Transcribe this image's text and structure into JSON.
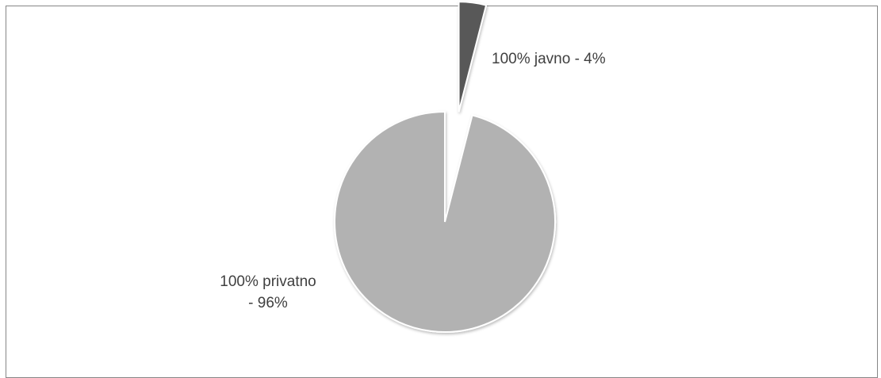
{
  "chart_data": {
    "type": "pie",
    "title": "",
    "series": [
      {
        "values": [
          4,
          96
        ],
        "categories": [
          "100% javno",
          "100% privatno"
        ]
      }
    ],
    "slices": [
      {
        "label": "100% javno - 4%",
        "label_lines": [
          "100% javno -  4%"
        ],
        "value": 4,
        "color": "#595959",
        "exploded": true
      },
      {
        "label": "100% privatno - 96%",
        "label_lines": [
          "100% privatno",
          "- 96%"
        ],
        "value": 96,
        "color": "#b2b2b2",
        "exploded": false
      }
    ],
    "start_angle": "12 o'clock",
    "direction": "clockwise",
    "legend": "none",
    "border_color": "#868686",
    "slice_edge_color": "#ffffff"
  }
}
